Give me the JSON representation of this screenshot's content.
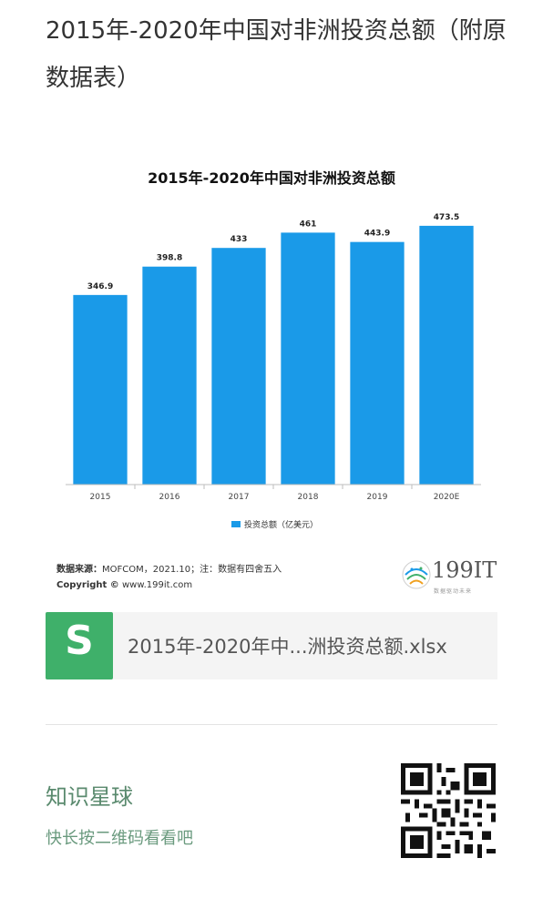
{
  "page": {
    "title": "2015年-2020年中国对非洲投资总额（附原数据表）"
  },
  "chart_data": {
    "type": "bar",
    "title": "2015年-2020年中国对非洲投资总额",
    "categories": [
      "2015",
      "2016",
      "2017",
      "2018",
      "2019",
      "2020E"
    ],
    "series": [
      {
        "name": "投资总额（亿美元）",
        "values": [
          346.9,
          398.8,
          433,
          461,
          443.9,
          473.5
        ]
      }
    ],
    "value_labels": [
      "346.9",
      "398.8",
      "433",
      "461",
      "443.9",
      "473.5"
    ],
    "ylim": [
      0,
      500
    ],
    "grid": false,
    "legend_position": "bottom-center",
    "bar_color": "#1a9ae8"
  },
  "source": {
    "label": "数据来源：",
    "text": "MOFCOM，2021.10；注：数据有四舍五入",
    "copyright_label": "Copyright ©",
    "copyright_text": "www.199it.com"
  },
  "brand": {
    "name": "199IT",
    "tagline": "数据驱动未来"
  },
  "file": {
    "icon_letter": "S",
    "icon_color": "#3fb06a",
    "name": "2015年-2020年中...洲投资总额.xlsx"
  },
  "planet": {
    "title": "知识星球",
    "subtitle": "快长按二维码看看吧",
    "qr_icon": "qr-code-icon"
  }
}
